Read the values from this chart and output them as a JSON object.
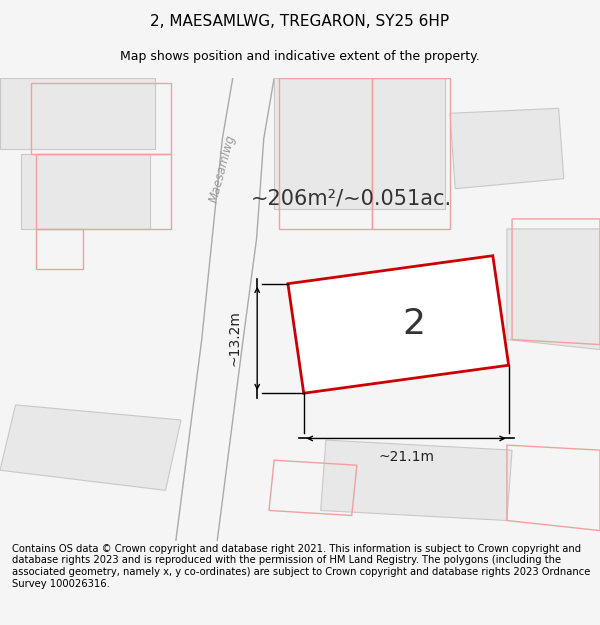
{
  "title": "2, MAESAMLWG, TREGARON, SY25 6HP",
  "subtitle": "Map shows position and indicative extent of the property.",
  "footer": "Contains OS data © Crown copyright and database right 2021. This information is subject to Crown copyright and database rights 2023 and is reproduced with the permission of HM Land Registry. The polygons (including the associated geometry, namely x, y co-ordinates) are subject to Crown copyright and database rights 2023 Ordnance Survey 100026316.",
  "area_text": "~206m²/~0.051ac.",
  "number_label": "2",
  "dim_width": "~21.1m",
  "dim_height": "~13.2m",
  "bg_color": "#f5f5f5",
  "map_bg": "#ffffff",
  "road_label": "Maesamlwg",
  "subject_fill": "#ffffff",
  "subject_edge": "#cc0000",
  "other_fill": "#e8e8e8",
  "other_edge": "#c8c8c8",
  "pink_edge": "#f0a0a0",
  "road_edge": "#aaaaaa",
  "title_fontsize": 11,
  "subtitle_fontsize": 9,
  "footer_fontsize": 7.2
}
